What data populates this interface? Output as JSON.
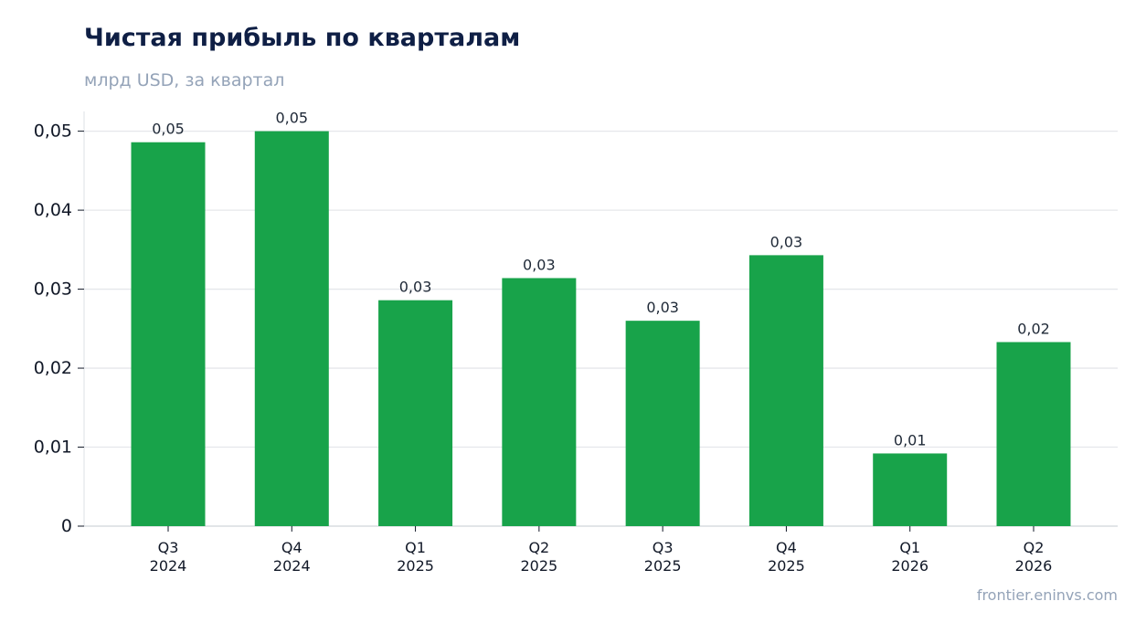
{
  "chart_data": {
    "type": "bar",
    "title": "Чистая прибыль по кварталам",
    "subtitle": "млрд USD, за квартал",
    "categories": [
      [
        "Q3",
        "2024"
      ],
      [
        "Q4",
        "2024"
      ],
      [
        "Q1",
        "2025"
      ],
      [
        "Q2",
        "2025"
      ],
      [
        "Q3",
        "2025"
      ],
      [
        "Q4",
        "2025"
      ],
      [
        "Q1",
        "2026"
      ],
      [
        "Q2",
        "2026"
      ]
    ],
    "series": [
      {
        "values": [
          0.0486,
          0.05,
          0.0286,
          0.0314,
          0.026,
          0.0343,
          0.0092,
          0.0233
        ],
        "data_labels": [
          "0,05",
          "0,05",
          "0,03",
          "0,03",
          "0,03",
          "0,03",
          "0,01",
          "0,02"
        ],
        "color": "#18a34a"
      }
    ],
    "yticks": [
      {
        "value": 0,
        "label": "0"
      },
      {
        "value": 0.01,
        "label": "0,01"
      },
      {
        "value": 0.02,
        "label": "0,02"
      },
      {
        "value": 0.03,
        "label": "0,03"
      },
      {
        "value": 0.04,
        "label": "0,04"
      },
      {
        "value": 0.05,
        "label": "0,05"
      }
    ],
    "ylim": [
      0,
      0.0525
    ],
    "grid": true,
    "legend": "none"
  },
  "watermark": "frontier.eninvs.com"
}
